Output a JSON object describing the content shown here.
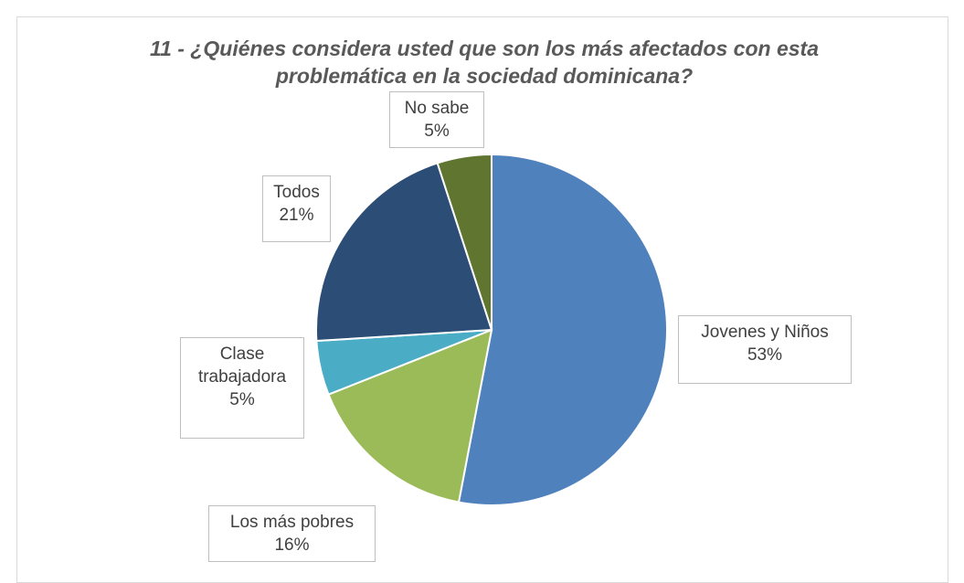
{
  "chart_data": {
    "type": "pie",
    "title": "11 - ¿Quiénes considera usted que son los más afectados con esta problemática en la sociedad dominicana?",
    "categories": [
      "Jovenes y Niños",
      "Los más pobres",
      "Clase trabajadora",
      "Todos",
      "No sabe"
    ],
    "values": [
      53,
      16,
      5,
      21,
      5
    ],
    "value_labels": [
      "53%",
      "16%",
      "5%",
      "21%",
      "5%"
    ],
    "colors": [
      "#4f81bd",
      "#9bbb59",
      "#4bacc6",
      "#2c4d75",
      "#5f7530"
    ]
  }
}
